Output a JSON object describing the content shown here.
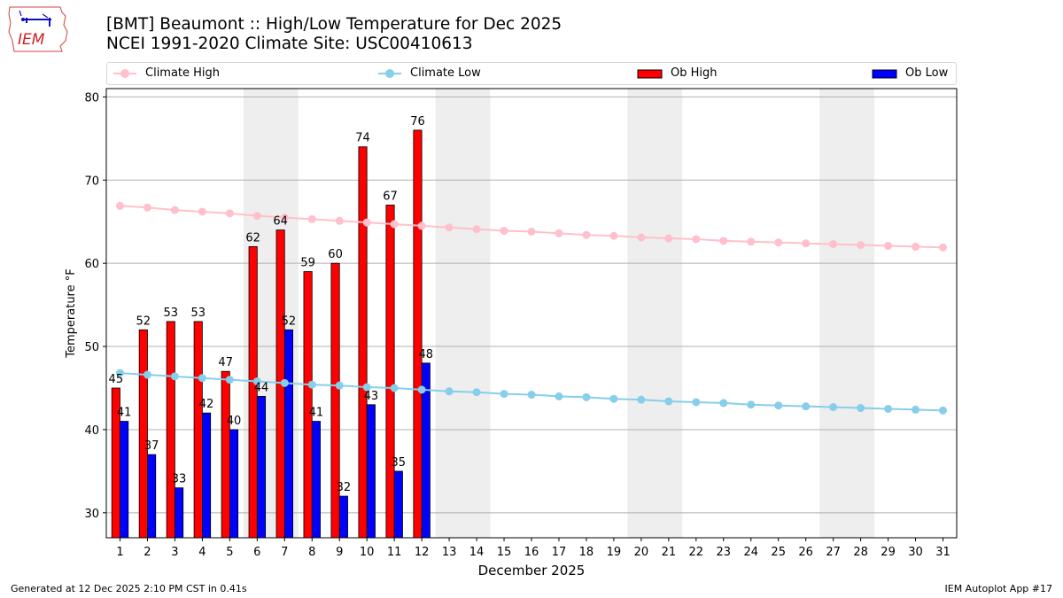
{
  "header": {
    "title_line1": "[BMT] Beaumont :: High/Low Temperature for Dec 2025",
    "title_line2": "NCEI 1991-2020 Climate Site: USC00410613",
    "logo_text": "IEM"
  },
  "legend": {
    "items": [
      {
        "label": "Climate High",
        "kind": "line-marker",
        "color": "#ffc0cb"
      },
      {
        "label": "Climate Low",
        "kind": "line-marker",
        "color": "#87ceeb"
      },
      {
        "label": "Ob High",
        "kind": "bar",
        "color": "#ff0000"
      },
      {
        "label": "Ob Low",
        "kind": "bar",
        "color": "#0000ff"
      }
    ]
  },
  "footer": {
    "left": "Generated at 12 Dec 2025 2:10 PM CST in 0.41s",
    "right": "IEM Autoplot App #17"
  },
  "chart_data": {
    "type": "bar",
    "title": "[BMT] Beaumont :: High/Low Temperature for Dec 2025",
    "subtitle": "NCEI 1991-2020 Climate Site: USC00410613",
    "xlabel": "December 2025",
    "ylabel": "Temperature °F",
    "xlim": [
      0.5,
      31.5
    ],
    "ylim": [
      27,
      81
    ],
    "yticks": [
      30,
      40,
      50,
      60,
      70,
      80
    ],
    "grid": "horizontal",
    "legend_position": "top (above plot, expanded)",
    "weekend_shading": [
      [
        5.5,
        7.5
      ],
      [
        12.5,
        14.5
      ],
      [
        19.5,
        21.5
      ],
      [
        26.5,
        28.5
      ]
    ],
    "weekend_color": "#eeeeee",
    "categories": [
      "1",
      "2",
      "3",
      "4",
      "5",
      "6",
      "7",
      "8",
      "9",
      "10",
      "11",
      "12",
      "13",
      "14",
      "15",
      "16",
      "17",
      "18",
      "19",
      "20",
      "21",
      "22",
      "23",
      "24",
      "25",
      "26",
      "27",
      "28",
      "29",
      "30",
      "31"
    ],
    "series": [
      {
        "name": "Ob High",
        "type": "bar",
        "color": "#ff0000",
        "values": [
          45,
          52,
          53,
          53,
          47,
          62,
          64,
          59,
          60,
          74,
          67,
          76
        ],
        "labels": [
          "45",
          "52",
          "53",
          "53",
          "47",
          "62",
          "64",
          "59",
          "60",
          "74",
          "67",
          "76"
        ]
      },
      {
        "name": "Ob Low",
        "type": "bar",
        "color": "#0000ff",
        "values": [
          41,
          37,
          33,
          42,
          40,
          44,
          52,
          41,
          32,
          43,
          35,
          48
        ],
        "labels": [
          "41",
          "37",
          "33",
          "42",
          "40",
          "44",
          "52",
          "41",
          "32",
          "43",
          "35",
          "48"
        ]
      },
      {
        "name": "Climate High",
        "type": "line",
        "color": "#ffc0cb",
        "values": [
          66.9,
          66.7,
          66.4,
          66.2,
          66.0,
          65.7,
          65.5,
          65.3,
          65.1,
          64.9,
          64.7,
          64.5,
          64.3,
          64.1,
          63.9,
          63.8,
          63.6,
          63.4,
          63.3,
          63.1,
          63.0,
          62.9,
          62.7,
          62.6,
          62.5,
          62.4,
          62.3,
          62.2,
          62.1,
          62.0,
          61.9
        ]
      },
      {
        "name": "Climate Low",
        "type": "line",
        "color": "#87ceeb",
        "values": [
          46.8,
          46.6,
          46.4,
          46.2,
          46.0,
          45.8,
          45.6,
          45.4,
          45.3,
          45.1,
          45.0,
          44.8,
          44.6,
          44.5,
          44.3,
          44.2,
          44.0,
          43.9,
          43.7,
          43.6,
          43.4,
          43.3,
          43.2,
          43.0,
          42.9,
          42.8,
          42.7,
          42.6,
          42.5,
          42.4,
          42.3
        ]
      }
    ]
  }
}
